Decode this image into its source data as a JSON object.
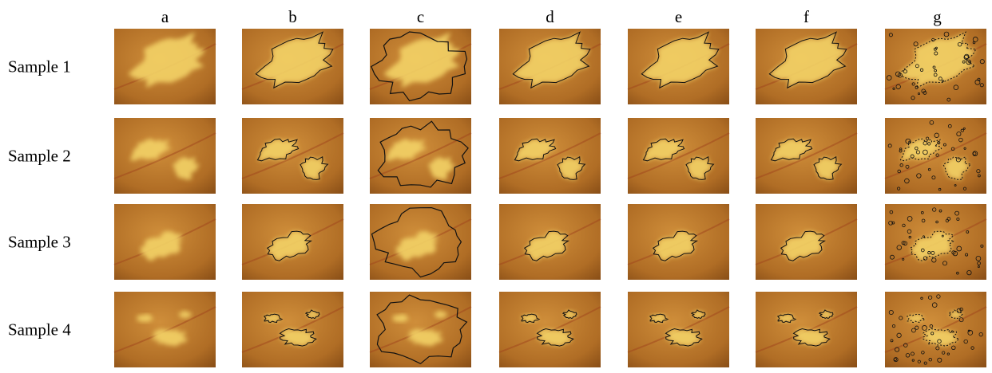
{
  "columns": [
    "a",
    "b",
    "c",
    "d",
    "e",
    "f",
    "g"
  ],
  "rows": [
    "Sample 1",
    "Sample 2",
    "Sample 3",
    "Sample 4"
  ]
}
